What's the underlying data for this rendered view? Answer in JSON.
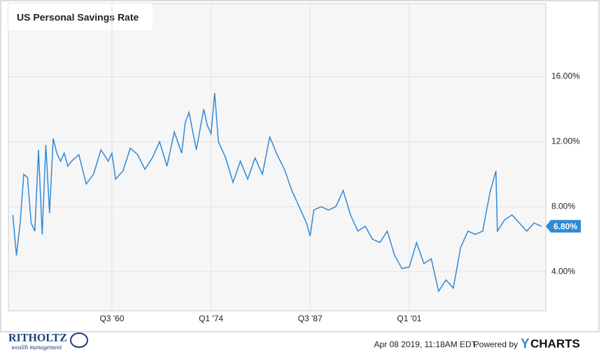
{
  "chart_data": {
    "type": "line",
    "title": "US Personal Savings Rate",
    "x": [
      1947,
      1947.5,
      1948,
      1948.5,
      1949,
      1949.5,
      1950,
      1950.5,
      1951,
      1951.5,
      1952,
      1952.5,
      1953,
      1953.5,
      1954,
      1954.5,
      1955,
      1956,
      1957,
      1958,
      1959,
      1960,
      1960.5,
      1961,
      1962,
      1963,
      1964,
      1965,
      1966,
      1967,
      1968,
      1969,
      1970,
      1970.5,
      1971,
      1972,
      1973,
      1973.5,
      1974,
      1974.5,
      1975,
      1976,
      1977,
      1978,
      1979,
      1980,
      1981,
      1982,
      1983,
      1984,
      1985,
      1986,
      1987,
      1987.5,
      1988,
      1989,
      1990,
      1991,
      1992,
      1993,
      1994,
      1995,
      1996,
      1997,
      1998,
      1999,
      2000,
      2001,
      2002,
      2003,
      2004,
      2005,
      2006,
      2007,
      2008,
      2009,
      2010,
      2011,
      2012,
      2012.8,
      2013,
      2014,
      2015,
      2016,
      2017,
      2018,
      2019
    ],
    "values": [
      7.5,
      5.0,
      7.0,
      10.0,
      9.8,
      7.0,
      6.5,
      11.5,
      6.3,
      11.8,
      7.6,
      12.2,
      11.3,
      10.8,
      11.3,
      10.5,
      10.8,
      11.2,
      9.4,
      10.0,
      11.5,
      10.8,
      11.3,
      9.7,
      10.2,
      11.6,
      11.2,
      10.3,
      11.0,
      12.0,
      10.5,
      12.6,
      11.3,
      13.2,
      13.8,
      11.5,
      14.0,
      13.0,
      12.5,
      15.0,
      12.0,
      11.0,
      9.5,
      10.8,
      9.7,
      11.0,
      10.0,
      12.3,
      11.2,
      10.3,
      9.0,
      8.0,
      7.0,
      6.2,
      7.8,
      8.0,
      7.8,
      8.0,
      9.0,
      7.5,
      6.5,
      6.8,
      6.0,
      5.8,
      6.5,
      5.0,
      4.2,
      4.3,
      5.8,
      4.5,
      4.8,
      2.8,
      3.5,
      3.0,
      5.5,
      6.5,
      6.3,
      6.5,
      8.9,
      10.2,
      6.5,
      7.2,
      7.5,
      7.0,
      6.5,
      7.0,
      6.8
    ],
    "last_value_label": "6.80%",
    "color": "#2f8ad8",
    "xlim": [
      1946.4,
      2019.6
    ],
    "xticks": [
      {
        "value": 1960.5,
        "label": "Q3 '60"
      },
      {
        "value": 1974,
        "label": "Q1 '74"
      },
      {
        "value": 1987.5,
        "label": "Q3 '87"
      },
      {
        "value": 2001,
        "label": "Q1 '01"
      }
    ],
    "ylim": [
      1.6,
      20.5
    ],
    "yticks": [
      {
        "value": 4,
        "label": "4.00%"
      },
      {
        "value": 8,
        "label": "8.00%"
      },
      {
        "value": 12,
        "label": "12.00%"
      },
      {
        "value": 16,
        "label": "16.00%"
      }
    ],
    "grid": true
  },
  "footer": {
    "timestamp": "Apr 08 2019, 11:18AM EDT.",
    "powered": "Powered by",
    "brand_y": "Y",
    "brand_rest": "CHARTS",
    "logo": "RITHOLTZ",
    "logo_sub": "wealth management"
  }
}
